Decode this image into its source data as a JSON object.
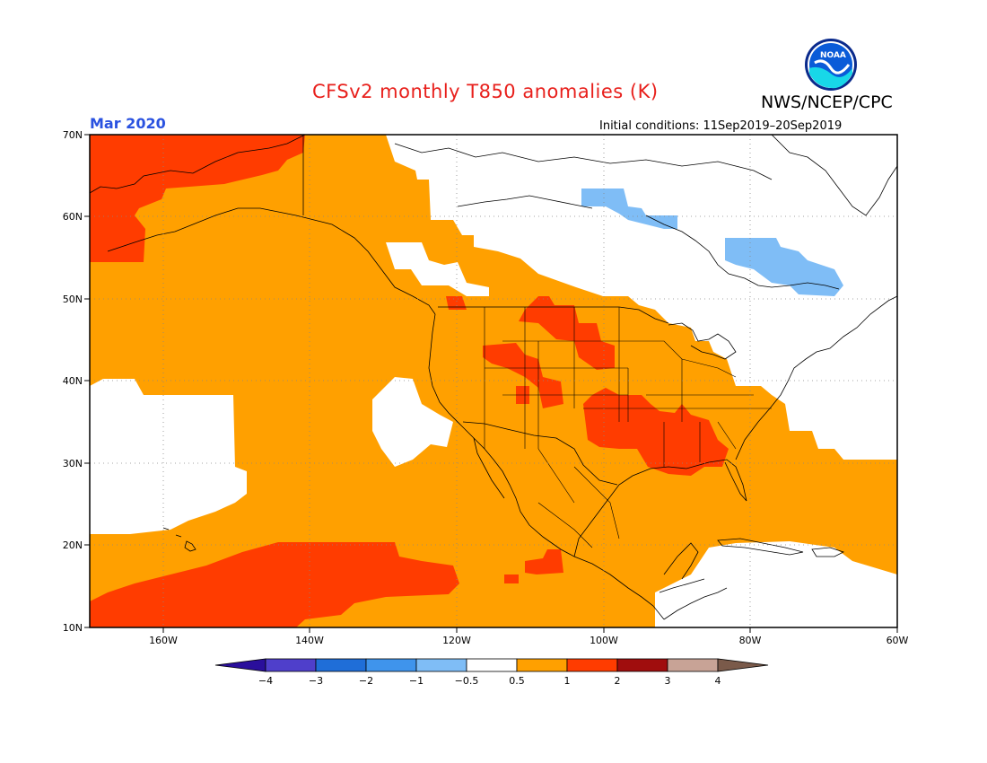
{
  "header": {
    "title": "CFSv2 monthly T850 anomalies (K)",
    "agency": "NWS/NCEP/CPC",
    "period": "Mar 2020",
    "initial_conditions": "Initial conditions: 11Sep2019–20Sep2019",
    "logo_text": "NOAA"
  },
  "map": {
    "projection": "equirectangular",
    "lon_range": [
      -171,
      -60
    ],
    "lat_range": [
      10,
      70
    ],
    "lat_labels": [
      "70N",
      "60N",
      "50N",
      "40N",
      "30N",
      "20N",
      "10N"
    ],
    "lon_labels": [
      "160W",
      "140W",
      "120W",
      "100W",
      "80W",
      "60W"
    ],
    "grid": true,
    "background_color": "#ffffff"
  },
  "colorbar": {
    "labels": [
      "−4",
      "−3",
      "−2",
      "−1",
      "−0.5",
      "0.5",
      "1",
      "2",
      "3",
      "4"
    ],
    "colors": [
      "#2a0f9c",
      "#4f3fcb",
      "#1f6ed8",
      "#3f94ec",
      "#7fbdf6",
      "#ffffff",
      "#ffa000",
      "#ff3c00",
      "#a00d0d",
      "#c8a396",
      "#7a5a4a"
    ]
  },
  "anomaly_colors": {
    "weak_warm": "#ffa000",
    "warm": "#ff3c00",
    "weak_cold": "#7fbdf6"
  }
}
